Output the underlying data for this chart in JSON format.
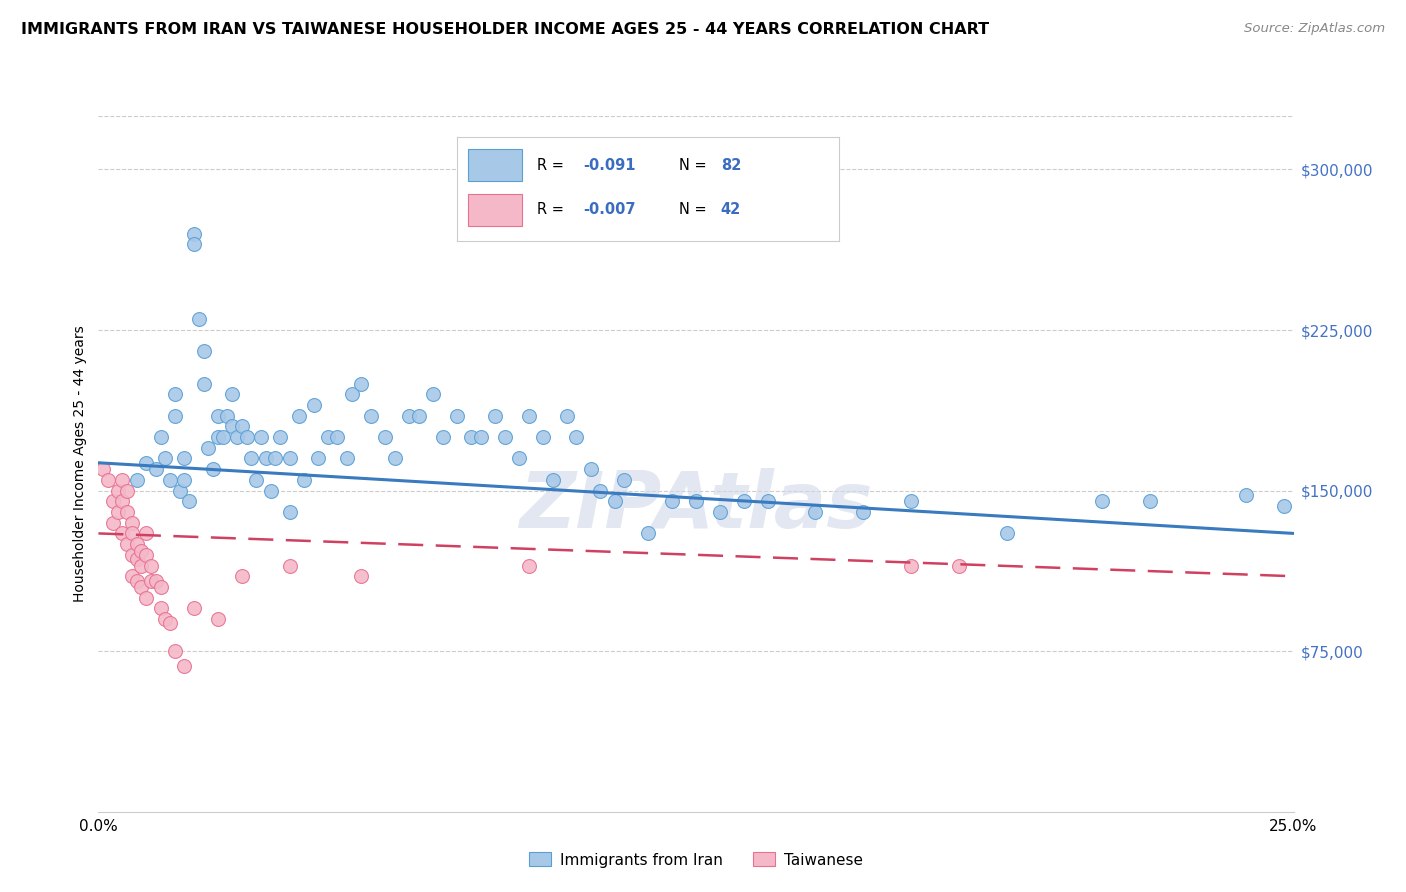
{
  "title": "IMMIGRANTS FROM IRAN VS TAIWANESE HOUSEHOLDER INCOME AGES 25 - 44 YEARS CORRELATION CHART",
  "source": "Source: ZipAtlas.com",
  "ylabel": "Householder Income Ages 25 - 44 years",
  "ytick_labels": [
    "$75,000",
    "$150,000",
    "$225,000",
    "$300,000"
  ],
  "ytick_values": [
    75000,
    150000,
    225000,
    300000
  ],
  "xlim": [
    0.0,
    0.25
  ],
  "ylim": [
    0,
    325000
  ],
  "legend_label_blue": "Immigrants from Iran",
  "legend_label_pink": "Taiwanese",
  "blue_color": "#a8c8e8",
  "pink_color": "#f4b8c8",
  "blue_edge_color": "#5a9fd4",
  "pink_edge_color": "#e87090",
  "blue_line_color": "#3a7abf",
  "pink_line_color": "#d04060",
  "watermark": "ZIPAtlas",
  "blue_x": [
    0.008,
    0.01,
    0.012,
    0.013,
    0.014,
    0.015,
    0.016,
    0.016,
    0.017,
    0.018,
    0.018,
    0.019,
    0.02,
    0.02,
    0.021,
    0.022,
    0.022,
    0.023,
    0.024,
    0.025,
    0.025,
    0.026,
    0.027,
    0.028,
    0.028,
    0.029,
    0.03,
    0.031,
    0.032,
    0.033,
    0.034,
    0.035,
    0.036,
    0.037,
    0.038,
    0.04,
    0.04,
    0.042,
    0.043,
    0.045,
    0.046,
    0.048,
    0.05,
    0.052,
    0.053,
    0.055,
    0.057,
    0.06,
    0.062,
    0.065,
    0.067,
    0.07,
    0.072,
    0.075,
    0.078,
    0.08,
    0.083,
    0.085,
    0.088,
    0.09,
    0.093,
    0.095,
    0.098,
    0.1,
    0.103,
    0.105,
    0.108,
    0.11,
    0.115,
    0.12,
    0.125,
    0.13,
    0.135,
    0.14,
    0.15,
    0.16,
    0.17,
    0.19,
    0.21,
    0.22,
    0.24,
    0.248
  ],
  "blue_y": [
    155000,
    163000,
    160000,
    175000,
    165000,
    155000,
    195000,
    185000,
    150000,
    165000,
    155000,
    145000,
    270000,
    265000,
    230000,
    215000,
    200000,
    170000,
    160000,
    185000,
    175000,
    175000,
    185000,
    195000,
    180000,
    175000,
    180000,
    175000,
    165000,
    155000,
    175000,
    165000,
    150000,
    165000,
    175000,
    165000,
    140000,
    185000,
    155000,
    190000,
    165000,
    175000,
    175000,
    165000,
    195000,
    200000,
    185000,
    175000,
    165000,
    185000,
    185000,
    195000,
    175000,
    185000,
    175000,
    175000,
    185000,
    175000,
    165000,
    185000,
    175000,
    155000,
    185000,
    175000,
    160000,
    150000,
    145000,
    155000,
    130000,
    145000,
    145000,
    140000,
    145000,
    145000,
    140000,
    140000,
    145000,
    130000,
    145000,
    145000,
    148000,
    143000
  ],
  "pink_x": [
    0.001,
    0.002,
    0.003,
    0.003,
    0.004,
    0.004,
    0.005,
    0.005,
    0.005,
    0.006,
    0.006,
    0.006,
    0.007,
    0.007,
    0.007,
    0.007,
    0.008,
    0.008,
    0.008,
    0.009,
    0.009,
    0.009,
    0.01,
    0.01,
    0.01,
    0.011,
    0.011,
    0.012,
    0.013,
    0.013,
    0.014,
    0.015,
    0.016,
    0.018,
    0.02,
    0.025,
    0.03,
    0.04,
    0.055,
    0.09,
    0.17,
    0.18
  ],
  "pink_y": [
    160000,
    155000,
    145000,
    135000,
    150000,
    140000,
    155000,
    145000,
    130000,
    150000,
    140000,
    125000,
    135000,
    130000,
    120000,
    110000,
    125000,
    118000,
    108000,
    122000,
    115000,
    105000,
    130000,
    120000,
    100000,
    115000,
    108000,
    108000,
    105000,
    95000,
    90000,
    88000,
    75000,
    68000,
    95000,
    90000,
    110000,
    115000,
    110000,
    115000,
    115000,
    115000
  ],
  "blue_trendline_x": [
    0.0,
    0.25
  ],
  "blue_trendline_y": [
    163000,
    130000
  ],
  "pink_trendline_x": [
    0.0,
    0.25
  ],
  "pink_trendline_y": [
    130000,
    110000
  ]
}
